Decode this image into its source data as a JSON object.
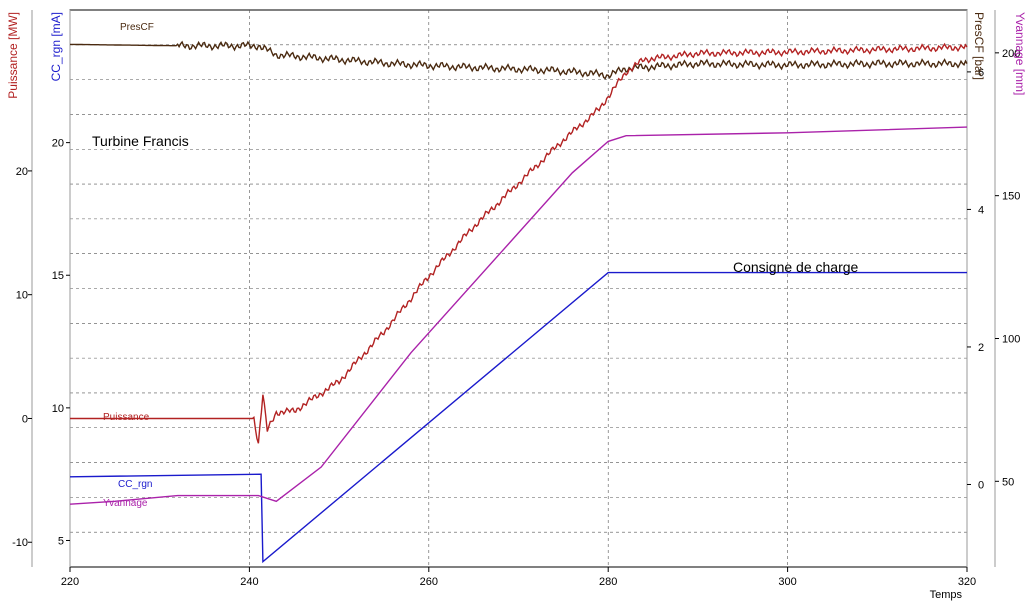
{
  "chart_data": {
    "type": "line",
    "title": "",
    "annotations": [
      "Turbine Francis",
      "Consigne de  charge"
    ],
    "xlabel": "Temps",
    "x_ticks": [
      220,
      240,
      260,
      280,
      300,
      320
    ],
    "xlim": [
      220,
      320
    ],
    "grid": true,
    "legend": "labels placed next to each curve",
    "axes": {
      "puissance": {
        "label": "Puissance [MW]",
        "color": "#b22222",
        "ticks": [
          -10,
          0,
          10,
          20
        ],
        "ylim": [
          -12,
          33
        ]
      },
      "cc_rgn": {
        "label": "CC_rgn [mA]",
        "color": "#1a1acc",
        "ticks": [
          5,
          10,
          15,
          20
        ],
        "ylim": [
          4,
          25
        ]
      },
      "prescf": {
        "label": "PresCF [bar]",
        "color": "#4a2a10",
        "ticks": [
          0,
          2,
          4,
          6
        ],
        "ylim": [
          -1.2,
          6.9
        ]
      },
      "yvannage": {
        "label": "Yvannage [mm]",
        "color": "#aa22aa",
        "ticks": [
          50,
          100,
          150,
          200
        ],
        "ylim": [
          20,
          215
        ]
      }
    },
    "series": [
      {
        "name": "PresCF",
        "axis": "prescf",
        "color": "#4a2a10",
        "x": [
          220,
          232,
          241,
          243,
          250,
          256,
          262,
          268,
          274,
          278,
          280,
          282,
          290,
          300,
          310,
          320
        ],
        "y": [
          6.4,
          6.38,
          6.38,
          6.25,
          6.18,
          6.12,
          6.08,
          6.05,
          6.02,
          5.98,
          5.95,
          6.05,
          6.12,
          6.1,
          6.12,
          6.12
        ],
        "noise": 0.06
      },
      {
        "name": "Puissance",
        "axis": "puissance",
        "color": "#b22222",
        "x": [
          220,
          240.5,
          241,
          241.5,
          242,
          243,
          245,
          250,
          255,
          260,
          265,
          270,
          275,
          279,
          282,
          284,
          290,
          300,
          310,
          320
        ],
        "y": [
          0,
          0,
          -2,
          2,
          -1,
          0.5,
          0.6,
          3,
          7,
          11.5,
          15.5,
          19,
          22.5,
          25,
          28,
          29,
          29.5,
          29.6,
          29.8,
          30
        ],
        "noise": 0.3
      },
      {
        "name": "CC_rgn",
        "axis": "cc_rgn",
        "color": "#1a1acc",
        "x": [
          220,
          241.3,
          241.5,
          280,
          320
        ],
        "y": [
          7.4,
          7.5,
          4.2,
          15.1,
          15.1
        ],
        "noise": 0
      },
      {
        "name": "Yvannage",
        "axis": "yvannage",
        "color": "#aa22aa",
        "x": [
          220,
          225,
          232,
          241,
          243,
          248,
          258,
          268,
          276,
          280,
          282,
          300,
          320
        ],
        "y": [
          42,
          43,
          45,
          45,
          43,
          55,
          95,
          130,
          158,
          169,
          171,
          172,
          174
        ],
        "noise": 0
      }
    ]
  }
}
